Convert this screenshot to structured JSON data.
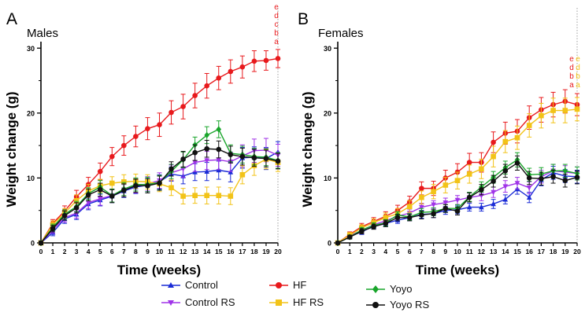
{
  "figure": {
    "x_ticks": [
      "0",
      "1",
      "2",
      "3",
      "4",
      "5",
      "6",
      "7",
      "8",
      "9",
      "10",
      "11",
      "12",
      "13",
      "14",
      "15",
      "16",
      "17",
      "18",
      "19",
      "20"
    ]
  },
  "series_styles": [
    {
      "name": "Control",
      "color": "#1a2bd6",
      "marker": "triangle-up"
    },
    {
      "name": "Control RS",
      "color": "#a033e8",
      "marker": "triangle-down"
    },
    {
      "name": "HF",
      "color": "#e8191c",
      "marker": "circle"
    },
    {
      "name": "HF RS",
      "color": "#f2c318",
      "marker": "square"
    },
    {
      "name": "Yoyo",
      "color": "#19a52b",
      "marker": "diamond"
    },
    {
      "name": "Yoyo RS",
      "color": "#111111",
      "marker": "circle"
    }
  ],
  "legend": [
    "Control",
    "Control RS",
    "HF",
    "HF RS",
    "Yoyo",
    "Yoyo RS"
  ],
  "chart_data": [
    {
      "type": "line",
      "panel_label": "A",
      "title": "Males",
      "xlabel": "Time (weeks)",
      "ylabel": "Weight change (g)",
      "x": [
        0,
        1,
        2,
        3,
        4,
        5,
        6,
        7,
        8,
        9,
        10,
        11,
        12,
        13,
        14,
        15,
        16,
        17,
        18,
        19,
        20
      ],
      "xlim": [
        0,
        20
      ],
      "ylim": [
        0,
        31
      ],
      "yticks": [
        0,
        10,
        20,
        30
      ],
      "series": [
        {
          "name": "Control",
          "values": [
            0,
            1.6,
            3.7,
            4.4,
            6.0,
            6.6,
            7.2,
            8.0,
            8.6,
            8.9,
            9.4,
            10.6,
            10.3,
            10.9,
            11.0,
            11.2,
            10.9,
            13.1,
            13.2,
            13.0,
            14.0
          ],
          "error": [
            0.3,
            0.5,
            0.7,
            0.8,
            0.9,
            0.9,
            1.0,
            1.0,
            1.0,
            1.0,
            1.1,
            1.1,
            1.2,
            1.3,
            1.4,
            1.4,
            1.5,
            1.6,
            1.6,
            1.7,
            1.6
          ]
        },
        {
          "name": "Control RS",
          "values": [
            0,
            2.0,
            3.9,
            4.6,
            6.2,
            6.8,
            7.3,
            8.2,
            8.8,
            9.1,
            9.6,
            10.8,
            11.4,
            12.4,
            12.7,
            12.8,
            12.5,
            13.4,
            14.2,
            14.3,
            13.5
          ],
          "error": [
            0.3,
            0.5,
            0.7,
            0.8,
            0.9,
            1.0,
            1.0,
            1.1,
            1.1,
            1.1,
            1.2,
            1.2,
            1.3,
            1.4,
            1.4,
            1.5,
            1.5,
            1.7,
            1.8,
            1.8,
            1.7
          ]
        },
        {
          "name": "HF",
          "values": [
            0,
            3.0,
            4.9,
            7.1,
            9.0,
            11.0,
            13.3,
            15.0,
            16.4,
            17.6,
            18.2,
            20.1,
            21.0,
            22.7,
            24.2,
            25.4,
            26.4,
            27.1,
            28.0,
            28.1,
            28.4
          ],
          "error": [
            0.3,
            0.6,
            0.8,
            1.0,
            1.1,
            1.3,
            1.4,
            1.5,
            1.6,
            1.7,
            1.8,
            1.8,
            1.9,
            1.9,
            1.9,
            1.8,
            1.8,
            1.7,
            1.6,
            1.5,
            1.4
          ]
        },
        {
          "name": "HF RS",
          "values": [
            0,
            2.8,
            4.6,
            6.5,
            8.0,
            8.8,
            9.2,
            9.4,
            9.5,
            9.4,
            9.1,
            8.5,
            7.2,
            7.3,
            7.3,
            7.3,
            7.2,
            10.5,
            11.9,
            12.9,
            12.4
          ],
          "error": [
            0.3,
            0.6,
            0.7,
            0.9,
            1.0,
            1.0,
            1.0,
            1.1,
            1.1,
            1.1,
            1.2,
            1.2,
            1.2,
            1.2,
            1.3,
            1.3,
            1.3,
            1.4,
            1.5,
            1.5,
            1.4
          ]
        },
        {
          "name": "Yoyo",
          "values": [
            0,
            2.4,
            4.4,
            5.6,
            7.6,
            8.6,
            7.3,
            8.3,
            9.0,
            9.0,
            9.3,
            11.0,
            12.8,
            15.1,
            16.6,
            17.5,
            13.8,
            13.6,
            13.3,
            13.2,
            12.7
          ],
          "error": [
            0.3,
            0.5,
            0.7,
            0.8,
            0.9,
            1.0,
            1.0,
            1.0,
            1.0,
            1.1,
            1.1,
            1.1,
            1.2,
            1.2,
            1.3,
            1.3,
            1.3,
            1.3,
            1.3,
            1.3,
            1.2
          ]
        },
        {
          "name": "Yoyo RS",
          "values": [
            0,
            2.2,
            4.2,
            5.4,
            7.4,
            8.2,
            7.2,
            8.1,
            8.8,
            8.8,
            9.2,
            11.4,
            12.9,
            13.9,
            14.5,
            14.4,
            13.6,
            13.3,
            13.1,
            13.0,
            12.6
          ],
          "error": [
            0.3,
            0.5,
            0.7,
            0.8,
            0.9,
            1.0,
            1.0,
            1.0,
            1.0,
            1.1,
            1.1,
            1.1,
            1.2,
            1.2,
            1.3,
            1.3,
            1.3,
            1.3,
            1.3,
            1.3,
            1.2
          ]
        }
      ],
      "annotations": [
        {
          "x": 20,
          "column": 0,
          "color": "#e8191c",
          "letters": [
            "e",
            "d",
            "c",
            "b",
            "a"
          ]
        }
      ]
    },
    {
      "type": "line",
      "panel_label": "B",
      "title": "Females",
      "xlabel": "Time (weeks)",
      "ylabel": "Weight change (g)",
      "x": [
        0,
        1,
        2,
        3,
        4,
        5,
        6,
        7,
        8,
        9,
        10,
        11,
        12,
        13,
        14,
        15,
        16,
        17,
        18,
        19,
        20
      ],
      "xlim": [
        0,
        20
      ],
      "ylim": [
        0,
        31
      ],
      "yticks": [
        0,
        10,
        20,
        30
      ],
      "series": [
        {
          "name": "Control",
          "values": [
            0,
            1.0,
            1.7,
            2.6,
            3.0,
            3.5,
            3.9,
            4.4,
            4.5,
            5.0,
            5.1,
            5.5,
            5.5,
            6.0,
            6.7,
            8.3,
            7.0,
            9.7,
            10.8,
            10.3,
            10.2
          ],
          "error": [
            0.2,
            0.3,
            0.4,
            0.4,
            0.5,
            0.5,
            0.5,
            0.6,
            0.6,
            0.6,
            0.6,
            0.6,
            0.6,
            0.7,
            0.7,
            0.8,
            0.8,
            0.9,
            1.0,
            1.0,
            1.0
          ]
        },
        {
          "name": "Control RS",
          "values": [
            0,
            1.1,
            1.9,
            2.8,
            3.4,
            4.1,
            4.6,
            5.5,
            5.9,
            6.2,
            6.6,
            7.0,
            7.3,
            7.8,
            8.7,
            9.2,
            8.5,
            10.2,
            11.1,
            10.9,
            10.7
          ],
          "error": [
            0.2,
            0.3,
            0.4,
            0.4,
            0.5,
            0.5,
            0.6,
            0.6,
            0.6,
            0.7,
            0.7,
            0.7,
            0.8,
            0.8,
            0.9,
            0.9,
            0.9,
            1.0,
            1.0,
            1.0,
            1.0
          ]
        },
        {
          "name": "HF",
          "values": [
            0,
            1.3,
            2.5,
            3.3,
            4.1,
            5.0,
            6.3,
            8.4,
            8.4,
            10.0,
            10.9,
            12.4,
            12.4,
            15.5,
            16.9,
            17.2,
            19.3,
            20.5,
            21.3,
            21.8,
            21.3
          ],
          "error": [
            0.2,
            0.4,
            0.5,
            0.6,
            0.7,
            0.8,
            0.9,
            1.0,
            1.1,
            1.2,
            1.3,
            1.4,
            1.5,
            1.6,
            1.7,
            1.8,
            1.8,
            1.9,
            1.9,
            1.8,
            1.7
          ]
        },
        {
          "name": "HF RS",
          "values": [
            0,
            1.2,
            2.3,
            3.1,
            3.9,
            4.5,
            5.6,
            7.0,
            7.9,
            8.9,
            9.6,
            10.6,
            11.4,
            13.3,
            15.6,
            16.2,
            18.1,
            19.6,
            20.4,
            20.4,
            20.6
          ],
          "error": [
            0.2,
            0.4,
            0.5,
            0.6,
            0.7,
            0.8,
            0.9,
            1.0,
            1.1,
            1.2,
            1.3,
            1.4,
            1.5,
            1.6,
            1.7,
            1.8,
            1.8,
            1.9,
            1.9,
            1.9,
            1.8
          ]
        },
        {
          "name": "Yoyo",
          "values": [
            0,
            0.9,
            2.0,
            2.7,
            3.1,
            4.3,
            4.0,
            4.7,
            4.8,
            5.3,
            5.3,
            7.1,
            8.6,
            10.1,
            11.6,
            12.8,
            10.5,
            10.6,
            11.1,
            11.1,
            10.7
          ],
          "error": [
            0.2,
            0.3,
            0.4,
            0.4,
            0.5,
            0.5,
            0.5,
            0.6,
            0.6,
            0.6,
            0.6,
            0.7,
            0.8,
            0.9,
            1.0,
            1.1,
            1.0,
            1.0,
            1.0,
            1.0,
            1.0
          ]
        },
        {
          "name": "Yoyo RS",
          "values": [
            0,
            0.9,
            1.8,
            2.5,
            3.0,
            3.9,
            3.9,
            4.3,
            4.5,
            5.3,
            4.9,
            7.0,
            8.2,
            9.5,
            11.1,
            12.3,
            10.0,
            9.9,
            10.2,
            9.6,
            10.1
          ],
          "error": [
            0.2,
            0.3,
            0.4,
            0.4,
            0.5,
            0.5,
            0.5,
            0.6,
            0.6,
            0.6,
            0.6,
            0.7,
            0.8,
            0.9,
            1.0,
            1.1,
            1.0,
            1.0,
            1.0,
            1.0,
            1.0
          ]
        }
      ],
      "annotations": [
        {
          "x": 20,
          "column": 0,
          "color": "#e8191c",
          "letters": [
            "e",
            "d",
            "b",
            "a"
          ]
        },
        {
          "x": 20,
          "column": 1,
          "color": "#f2c318",
          "letters": [
            "e",
            "d",
            "b",
            "a"
          ]
        }
      ]
    }
  ]
}
